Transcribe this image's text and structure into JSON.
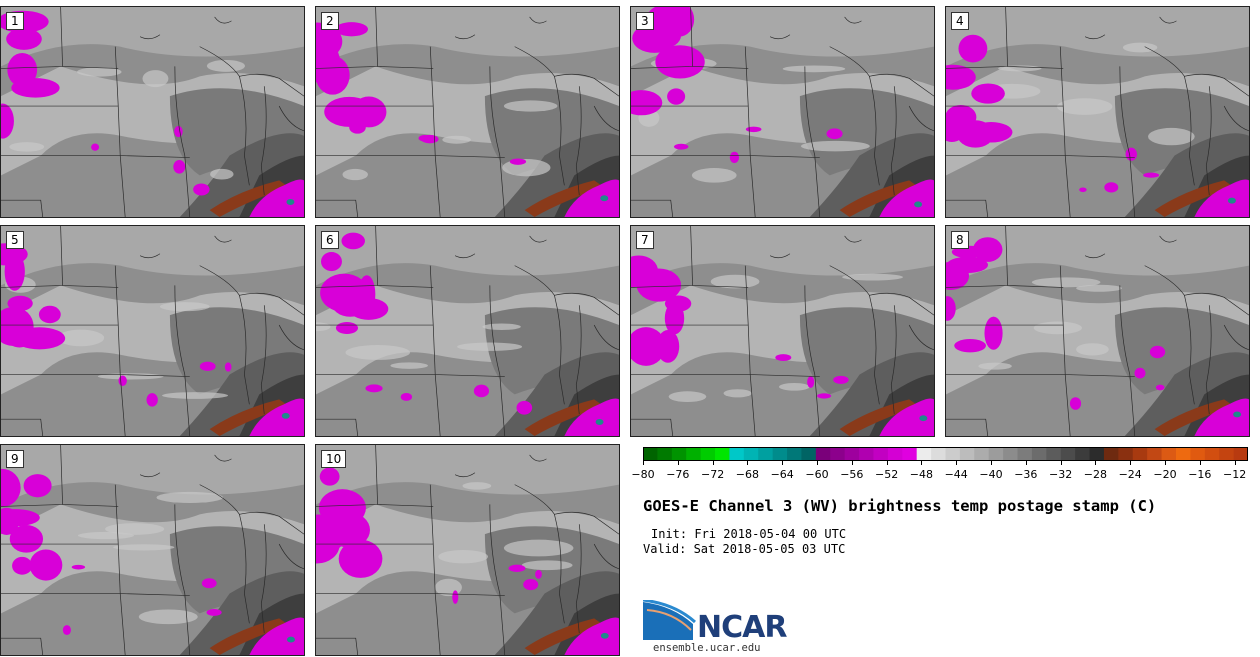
{
  "panels": [
    "1",
    "2",
    "3",
    "4",
    "5",
    "6",
    "7",
    "8",
    "9",
    "10"
  ],
  "colorbar": {
    "tick_labels": [
      "−80",
      "−76",
      "−72",
      "−68",
      "−64",
      "−60",
      "−56",
      "−52",
      "−48",
      "−44",
      "−40",
      "−36",
      "−32",
      "−28",
      "−24",
      "−20",
      "−16",
      "−12"
    ],
    "colors": [
      "#006400",
      "#007a00",
      "#009300",
      "#00b000",
      "#00cc00",
      "#00e600",
      "#00c8c8",
      "#00b4b4",
      "#00a0a0",
      "#008c8c",
      "#007878",
      "#006464",
      "#7a007a",
      "#8c008c",
      "#9e009e",
      "#b000b0",
      "#c200c2",
      "#d400d4",
      "#e000e0",
      "#ececec",
      "#dcdcdc",
      "#cccccc",
      "#bcbcbc",
      "#acacac",
      "#9c9c9c",
      "#8c8c8c",
      "#7c7c7c",
      "#6c6c6c",
      "#5c5c5c",
      "#4c4c4c",
      "#3c3c3c",
      "#2c2c2c",
      "#6e2a10",
      "#8a3010",
      "#a83a10",
      "#c24814",
      "#dc5a14",
      "#ee6a10",
      "#e05a10",
      "#d24e10",
      "#c44410",
      "#b83a10"
    ]
  },
  "title": "GOES-E Channel 3 (WV) brightness temp postage stamp (C)",
  "init": "Init: Fri 2018-05-04 00 UTC",
  "valid": "Valid: Sat 2018-05-05 03 UTC",
  "logo": {
    "text": "NCAR",
    "url": "ensemble.ucar.edu"
  },
  "colors": {
    "magenta": "#d800d8",
    "brown": "#8a3a1a",
    "teal": "#1f8a8a"
  }
}
